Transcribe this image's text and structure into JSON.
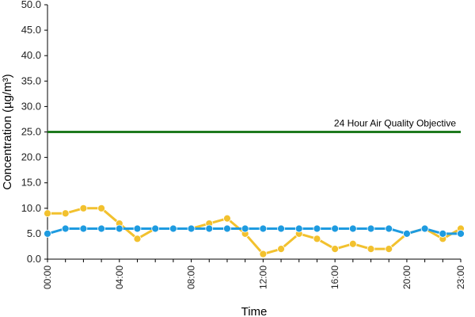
{
  "chart_data": {
    "type": "line",
    "title": "",
    "xlabel": "Time",
    "ylabel": "Concentration (µg/m³)",
    "ylim": [
      0,
      50
    ],
    "yticks": [
      "0.0",
      "5.0",
      "10.0",
      "15.0",
      "20.0",
      "25.0",
      "30.0",
      "35.0",
      "40.0",
      "45.0",
      "50.0"
    ],
    "x": [
      "00:00",
      "01:00",
      "02:00",
      "03:00",
      "04:00",
      "05:00",
      "06:00",
      "07:00",
      "08:00",
      "09:00",
      "10:00",
      "11:00",
      "12:00",
      "13:00",
      "14:00",
      "15:00",
      "16:00",
      "17:00",
      "18:00",
      "19:00",
      "20:00",
      "21:00",
      "22:00",
      "23:00"
    ],
    "xtick_labels": [
      "00:00",
      "04:00",
      "08:00",
      "12:00",
      "16:00",
      "20:00",
      "23:00"
    ],
    "xtick_positions": [
      0,
      4,
      8,
      12,
      16,
      20,
      23
    ],
    "grid": false,
    "legend": "none",
    "series": [
      {
        "color": "#f2c12e",
        "values": [
          9,
          9,
          10,
          10,
          7,
          4,
          6,
          6,
          6,
          7,
          8,
          5,
          1,
          2,
          5,
          4,
          2,
          3,
          2,
          2,
          5,
          6,
          4,
          6
        ]
      },
      {
        "color": "#1e9be0",
        "values": [
          5,
          6,
          6,
          6,
          6,
          6,
          6,
          6,
          6,
          6,
          6,
          6,
          6,
          6,
          6,
          6,
          6,
          6,
          6,
          6,
          5,
          6,
          5,
          5
        ]
      }
    ],
    "reference_line": {
      "label": "24 Hour Air Quality Objective",
      "value": 25,
      "color": "#1e7a1e"
    }
  }
}
